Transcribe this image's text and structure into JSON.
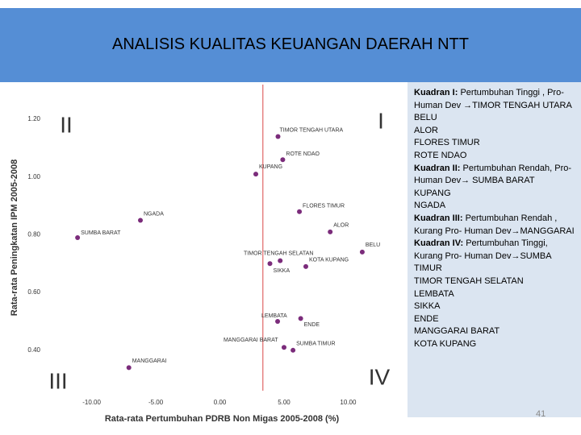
{
  "header": {
    "title": "ANALISIS KUALITAS KEUANGAN DAERAH NTT"
  },
  "chart_data": {
    "type": "scatter",
    "xlabel": "Rata-rata Pertumbuhan PDRB Non Migas 2005-2008 (%)",
    "ylabel": "Rata-rata Peningkatan IPM 2005-2008",
    "xlim": [
      -13.5,
      14
    ],
    "ylim": [
      0.26,
      1.32
    ],
    "xticks": [
      {
        "value": -10,
        "label": "-10.00"
      },
      {
        "value": -5,
        "label": "-5.00"
      },
      {
        "value": 0,
        "label": "0.00"
      },
      {
        "value": 5,
        "label": "5.00"
      },
      {
        "value": 10,
        "label": "10.00"
      }
    ],
    "yticks": [
      {
        "value": 0.4,
        "label": "0.40"
      },
      {
        "value": 0.6,
        "label": "0.60"
      },
      {
        "value": 0.8,
        "label": "0.80"
      },
      {
        "value": 1.0,
        "label": "1.00"
      },
      {
        "value": 1.2,
        "label": "1.20"
      }
    ],
    "vline": {
      "value": 3.35,
      "color": "#e06666"
    },
    "quadrant_labels": [
      "I",
      "II",
      "III",
      "IV"
    ],
    "series": [
      {
        "color": "#7b2c7b",
        "labels": [
          "TIMOR TENGAH UTARA",
          "ROTE NDAO",
          "KUPANG",
          "FLORES TIMUR",
          "ALOR",
          "BELU",
          "NGADA",
          "SUMBA BARAT",
          "TIMOR TENGAH SELATAN",
          "KOTA KUPANG",
          "SIKKA",
          "LEMBATA",
          "ENDE",
          "MANGGARAI BARAT",
          "SUMBA TIMUR",
          "MANGGARAI"
        ],
        "x": [
          4.53,
          4.9,
          2.8,
          6.2,
          8.6,
          11.1,
          -6.2,
          -11.1,
          4.7,
          6.7,
          3.9,
          4.5,
          6.3,
          5.0,
          5.7,
          -7.1
        ],
        "values": [
          1.14,
          1.06,
          1.01,
          0.88,
          0.81,
          0.74,
          0.85,
          0.79,
          0.71,
          0.69,
          0.7,
          0.5,
          0.51,
          0.41,
          0.4,
          0.34
        ]
      }
    ]
  },
  "sidebar": [
    {
      "heading": "Kuadran I:",
      "text": "Pertumbuhan Tinggi , Pro- Human Dev →TIMOR TENGAH UTARA",
      "items": [
        "BELU",
        "ALOR",
        "FLORES TIMUR",
        "ROTE NDAO"
      ]
    },
    {
      "heading": "Kuadran II:",
      "text": "Pertumbuhan Rendah, Pro- Human Dev→ SUMBA BARAT",
      "items": [
        "KUPANG",
        "NGADA"
      ]
    },
    {
      "heading": "Kuadran III:",
      "text": "Pertumbuhan Rendah , Kurang Pro- Human Dev→MANGGARAI",
      "items": []
    },
    {
      "heading": "Kuadran IV:",
      "text": "Pertumbuhan Tinggi, Kurang Pro- Human Dev→SUMBA TIMUR",
      "items": [
        "TIMOR TENGAH SELATAN",
        "LEMBATA",
        "SIKKA",
        "ENDE",
        "MANGGARAI BARAT",
        "KOTA KUPANG"
      ]
    }
  ],
  "page_number": "41"
}
